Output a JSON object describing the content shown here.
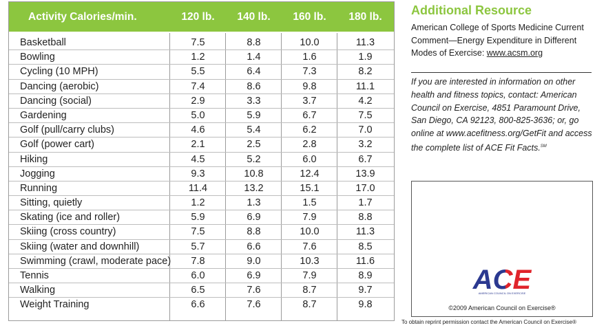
{
  "table": {
    "headers": [
      "Activity Calories/min.",
      "120 lb.",
      "140 lb.",
      "160 lb.",
      "180 lb."
    ],
    "rows": [
      {
        "activity": "Basketball",
        "v120": "7.5",
        "v140": "8.8",
        "v160": "10.0",
        "v180": "11.3"
      },
      {
        "activity": "Bowling",
        "v120": "1.2",
        "v140": "1.4",
        "v160": "1.6",
        "v180": "1.9"
      },
      {
        "activity": "Cycling (10 MPH)",
        "v120": "5.5",
        "v140": "6.4",
        "v160": "7.3",
        "v180": "8.2"
      },
      {
        "activity": "Dancing (aerobic)",
        "v120": "7.4",
        "v140": "8.6",
        "v160": "9.8",
        "v180": "11.1"
      },
      {
        "activity": "Dancing (social)",
        "v120": "2.9",
        "v140": "3.3",
        "v160": "3.7",
        "v180": "4.2"
      },
      {
        "activity": "Gardening",
        "v120": "5.0",
        "v140": "5.9",
        "v160": "6.7",
        "v180": "7.5"
      },
      {
        "activity": "Golf (pull/carry clubs)",
        "v120": "4.6",
        "v140": "5.4",
        "v160": "6.2",
        "v180": "7.0"
      },
      {
        "activity": "Golf (power cart)",
        "v120": "2.1",
        "v140": "2.5",
        "v160": "2.8",
        "v180": "3.2"
      },
      {
        "activity": "Hiking",
        "v120": "4.5",
        "v140": "5.2",
        "v160": "6.0",
        "v180": "6.7"
      },
      {
        "activity": "Jogging",
        "v120": "9.3",
        "v140": "10.8",
        "v160": "12.4",
        "v180": "13.9"
      },
      {
        "activity": "Running",
        "v120": "11.4",
        "v140": "13.2",
        "v160": "15.1",
        "v180": "17.0"
      },
      {
        "activity": "Sitting, quietly",
        "v120": "1.2",
        "v140": "1.3",
        "v160": "1.5",
        "v180": "1.7"
      },
      {
        "activity": "Skating (ice and roller)",
        "v120": "5.9",
        "v140": "6.9",
        "v160": "7.9",
        "v180": "8.8"
      },
      {
        "activity": "Skiing (cross country)",
        "v120": "7.5",
        "v140": "8.8",
        "v160": "10.0",
        "v180": "11.3"
      },
      {
        "activity": "Skiing (water and downhill)",
        "v120": "5.7",
        "v140": "6.6",
        "v160": "7.6",
        "v180": "8.5"
      },
      {
        "activity": "Swimming (crawl, moderate pace)",
        "v120": "7.8",
        "v140": "9.0",
        "v160": "10.3",
        "v180": "11.6"
      },
      {
        "activity": "Tennis",
        "v120": "6.0",
        "v140": "6.9",
        "v160": "7.9",
        "v180": "8.9"
      },
      {
        "activity": "Walking",
        "v120": "6.5",
        "v140": "7.6",
        "v160": "8.7",
        "v180": "9.7"
      },
      {
        "activity": "Weight Training",
        "v120": "6.6",
        "v140": "7.6",
        "v160": "8.7",
        "v180": "9.8"
      }
    ]
  },
  "resource": {
    "title": "Additional Resource",
    "text": "American College of Sports Medicine Current Comment—Energy Expenditure in Different Modes of Exercise: ",
    "link": "www.acsm.org"
  },
  "info": {
    "text": "If you are interested in information on other health and fitness topics, contact: American Council on Exercise, 4851 Paramount Drive, San Diego, CA 92123, 800-825-3636; or, go online at www.acefitness.org/GetFit and access the complete list of ACE Fit Facts.",
    "trademark": "SM"
  },
  "logo": {
    "text": "ACE",
    "tagline": "AMERICAN COUNCIL ON EXERCISE"
  },
  "copyright": "©2009 American Council on Exercise®",
  "reprint": "To obtain reprint permission contact the American Council on Exercise®",
  "colors": {
    "header_green": "#8cc63f",
    "logo_blue": "#2b3990",
    "logo_red": "#e0242b"
  }
}
